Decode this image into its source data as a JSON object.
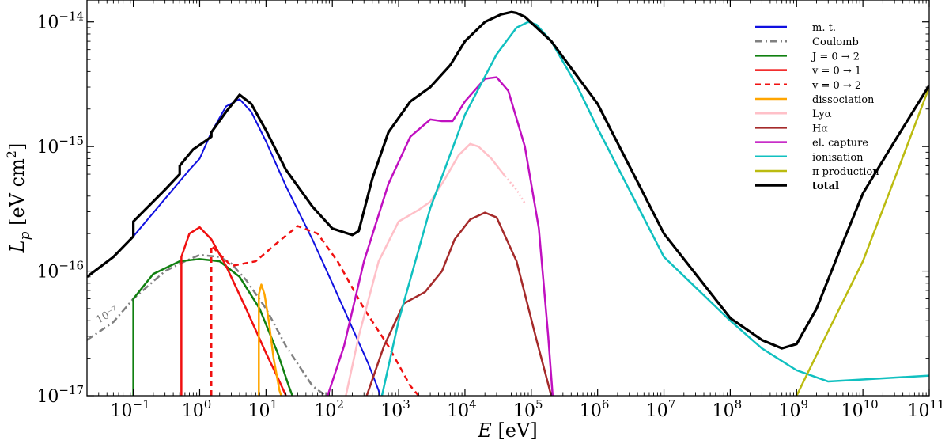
{
  "chart_data": {
    "type": "line",
    "xscale": "log",
    "yscale": "log",
    "xlim": [
      0.02,
      100000000000.0
    ],
    "ylim": [
      1e-17,
      1.5e-14
    ],
    "xlabel": {
      "symbol": "E",
      "unit": "[eV]"
    },
    "ylabel": {
      "symbol": "L",
      "sub": "p",
      "unit": "[eV cm",
      "unit_sup": "2",
      "unit_end": "]"
    },
    "grid": false,
    "legend_position": "top-right",
    "x_ticks": [
      {
        "value": 0.1,
        "base": "10",
        "exp": "−1"
      },
      {
        "value": 1,
        "base": "10",
        "exp": "0"
      },
      {
        "value": 10,
        "base": "10",
        "exp": "1"
      },
      {
        "value": 100,
        "base": "10",
        "exp": "2"
      },
      {
        "value": 1000,
        "base": "10",
        "exp": "3"
      },
      {
        "value": 10000,
        "base": "10",
        "exp": "4"
      },
      {
        "value": 100000,
        "base": "10",
        "exp": "5"
      },
      {
        "value": 1000000,
        "base": "10",
        "exp": "6"
      },
      {
        "value": 10000000,
        "base": "10",
        "exp": "7"
      },
      {
        "value": 100000000,
        "base": "10",
        "exp": "8"
      },
      {
        "value": 1000000000,
        "base": "10",
        "exp": "9"
      },
      {
        "value": 10000000000,
        "base": "10",
        "exp": "10"
      },
      {
        "value": 100000000000,
        "base": "10",
        "exp": "11"
      }
    ],
    "y_ticks": [
      {
        "value": 1e-17,
        "base": "10",
        "exp": "−17"
      },
      {
        "value": 1e-16,
        "base": "10",
        "exp": "−16"
      },
      {
        "value": 1e-15,
        "base": "10",
        "exp": "−15"
      },
      {
        "value": 1e-14,
        "base": "10",
        "exp": "−14"
      }
    ],
    "annotations": [
      {
        "text": "10⁻⁷",
        "x": 0.03,
        "y": 3.8e-17,
        "rotation": -30
      }
    ],
    "series": [
      {
        "name": "m. t.",
        "color": "#1010e0",
        "dash": "solid",
        "width": 2,
        "x": [
          0.1,
          0.3,
          0.7,
          1.0,
          1.5,
          2.5,
          4.0,
          6.0,
          10,
          20,
          50,
          100,
          200,
          350,
          500,
          520
        ],
        "y": [
          1.9e-16,
          3.8e-16,
          6.5e-16,
          8e-16,
          1.3e-15,
          2.1e-15,
          2.4e-15,
          1.9e-15,
          1.1e-15,
          4.8e-16,
          1.8e-16,
          8e-17,
          3.5e-17,
          1.8e-17,
          1.1e-17,
          1e-17
        ]
      },
      {
        "name": "Coulomb",
        "color": "#808080",
        "dash": "dashdot",
        "width": 2.5,
        "x": [
          0.02,
          0.05,
          0.1,
          0.3,
          0.6,
          1.0,
          2.0,
          3.0,
          5.0,
          10,
          20,
          50,
          80
        ],
        "y": [
          2.8e-17,
          3.9e-17,
          6e-17,
          1e-16,
          1.2e-16,
          1.35e-16,
          1.3e-16,
          1.15e-16,
          8.5e-17,
          5e-17,
          2.5e-17,
          1.2e-17,
          1e-17
        ]
      },
      {
        "name": "J = 0 → 2",
        "color": "#108010",
        "dash": "solid",
        "width": 2.5,
        "x": [
          0.1,
          0.1,
          0.2,
          0.5,
          1.0,
          2.0,
          4.0,
          8.0,
          15,
          22,
          25
        ],
        "y": [
          1e-17,
          6e-17,
          9.5e-17,
          1.2e-16,
          1.25e-16,
          1.2e-16,
          9e-17,
          5e-17,
          2.2e-17,
          1.2e-17,
          1e-17
        ]
      },
      {
        "name": "v = 0 → 1",
        "color": "#f01010",
        "dash": "solid",
        "width": 2.5,
        "x": [
          0.53,
          0.53,
          0.7,
          1.0,
          1.5,
          2.5,
          5,
          10,
          15,
          20
        ],
        "y": [
          1e-17,
          1.3e-16,
          2e-16,
          2.25e-16,
          1.8e-16,
          1.1e-16,
          5e-17,
          2.2e-17,
          1.4e-17,
          1e-17
        ]
      },
      {
        "name": "v = 0 → 2",
        "color": "#f01010",
        "dash": "dashed",
        "width": 2.5,
        "x": [
          1.5,
          1.5,
          3,
          7,
          15,
          30,
          60,
          120,
          300,
          700,
          1500,
          2000
        ],
        "y": [
          1e-17,
          1.6e-16,
          1.1e-16,
          1.2e-16,
          1.7e-16,
          2.3e-16,
          2e-16,
          1.2e-16,
          5e-17,
          2.5e-17,
          1.2e-17,
          1e-17
        ]
      },
      {
        "name": "dissociation",
        "color": "#ffa500",
        "dash": "solid",
        "width": 2.5,
        "x": [
          7.8,
          7.8,
          8.5,
          9.5,
          11,
          13,
          16,
          17
        ],
        "y": [
          1e-17,
          6.5e-17,
          7.8e-17,
          6.5e-17,
          4e-17,
          2e-17,
          1.1e-17,
          1e-17
        ]
      },
      {
        "name": "Lyα",
        "color": "#ffc0c8",
        "dash": "solid",
        "width": 2.5,
        "x": [
          160,
          250,
          500,
          1000,
          2000,
          3000,
          5000,
          8000,
          12000,
          16000,
          25000,
          40000
        ],
        "y": [
          1e-17,
          3e-17,
          1.2e-16,
          2.5e-16,
          3.1e-16,
          3.6e-16,
          5.5e-16,
          8.5e-16,
          1.05e-15,
          1e-15,
          8e-16,
          5.8e-16
        ]
      },
      {
        "name": "Lyα-dotted",
        "color": "#ffc0c8",
        "dash": "dotted",
        "width": 2.5,
        "x": [
          40000,
          60000,
          80000
        ],
        "y": [
          5.8e-16,
          4.5e-16,
          3.5e-16
        ]
      },
      {
        "name": "Hα",
        "color": "#a52a2a",
        "dash": "solid",
        "width": 2.5,
        "x": [
          330,
          600,
          1200,
          2500,
          4500,
          7000,
          12000,
          20000,
          30000,
          60000,
          120000,
          200000
        ],
        "y": [
          1e-17,
          2.5e-17,
          5.5e-17,
          6.8e-17,
          1e-16,
          1.8e-16,
          2.6e-16,
          2.95e-16,
          2.7e-16,
          1.2e-16,
          2.8e-17,
          1e-17
        ]
      },
      {
        "name": "el. capture",
        "color": "#c010c0",
        "dash": "solid",
        "width": 2.5,
        "x": [
          85,
          150,
          300,
          700,
          1500,
          3000,
          4500,
          6500,
          10000,
          20000,
          30000,
          45000,
          80000,
          130000,
          180000,
          210000
        ],
        "y": [
          1e-17,
          2.5e-17,
          1.2e-16,
          5e-16,
          1.2e-15,
          1.65e-15,
          1.6e-15,
          1.6e-15,
          2.3e-15,
          3.5e-15,
          3.6e-15,
          2.8e-15,
          1e-15,
          2.2e-16,
          3e-17,
          1e-17
        ]
      },
      {
        "name": "ionisation",
        "color": "#10c0c0",
        "dash": "solid",
        "width": 2.5,
        "x": [
          560,
          1000,
          3000,
          10000,
          30000,
          60000,
          90000,
          120000,
          200000,
          500000,
          1000000.0,
          10000000.0,
          100000000.0,
          300000000.0,
          1000000000.0,
          3000000000.0,
          10000000000.0,
          100000000000.0
        ],
        "y": [
          1e-17,
          4e-17,
          3.2e-16,
          1.8e-15,
          5.5e-15,
          9e-15,
          1e-14,
          9.5e-15,
          7e-15,
          3e-15,
          1.4e-15,
          1.3e-16,
          4e-17,
          2.4e-17,
          1.6e-17,
          1.3e-17,
          1.35e-17,
          1.45e-17
        ]
      },
      {
        "name": "π production",
        "color": "#bbbb10",
        "dash": "solid",
        "width": 2.5,
        "x": [
          1000000000.0,
          3000000000.0,
          10000000000.0,
          30000000000.0,
          100000000000.0
        ],
        "y": [
          1e-17,
          3.3e-17,
          1.2e-16,
          5.5e-16,
          3e-15
        ]
      },
      {
        "name": "total",
        "color": "#000000",
        "dash": "solid",
        "width": 3.2,
        "x": [
          0.02,
          0.05,
          0.1,
          0.1,
          0.3,
          0.5,
          0.5,
          0.8,
          1.2,
          1.5,
          1.5,
          2.5,
          4.0,
          6.0,
          10,
          20,
          50,
          100,
          200,
          250,
          400,
          700,
          1500,
          3000,
          6000,
          10000,
          20000,
          35000,
          50000,
          60000,
          80000,
          200000,
          1000000.0,
          10000000.0,
          100000000.0,
          300000000.0,
          600000000.0,
          1000000000.0,
          2000000000.0,
          5000000000.0,
          10000000000.0,
          30000000000.0,
          100000000000.0
        ],
        "y": [
          9e-17,
          1.3e-16,
          1.9e-16,
          2.5e-16,
          4.5e-16,
          6e-16,
          7e-16,
          9.5e-16,
          1.1e-15,
          1.2e-15,
          1.3e-15,
          1.9e-15,
          2.6e-15,
          2.2e-15,
          1.35e-15,
          6.5e-16,
          3.3e-16,
          2.2e-16,
          1.95e-16,
          2.1e-16,
          5.5e-16,
          1.3e-15,
          2.3e-15,
          3e-15,
          4.5e-15,
          7e-15,
          1e-14,
          1.15e-14,
          1.2e-14,
          1.18e-14,
          1.1e-14,
          7e-15,
          2.2e-15,
          2e-16,
          4.2e-17,
          2.8e-17,
          2.4e-17,
          2.6e-17,
          5e-17,
          1.7e-16,
          4.2e-16,
          1.1e-15,
          3.1e-15
        ]
      }
    ],
    "legend": [
      {
        "label": "m. t.",
        "color": "#1010e0",
        "dash": "solid",
        "bold": false
      },
      {
        "label": "Coulomb",
        "color": "#808080",
        "dash": "dashdot",
        "bold": false
      },
      {
        "label": "J = 0 → 2",
        "color": "#108010",
        "dash": "solid",
        "bold": false
      },
      {
        "label": "v = 0 → 1",
        "color": "#f01010",
        "dash": "solid",
        "bold": false
      },
      {
        "label": "v = 0 → 2",
        "color": "#f01010",
        "dash": "dashed",
        "bold": false
      },
      {
        "label": "dissociation",
        "color": "#ffa500",
        "dash": "solid",
        "bold": false
      },
      {
        "label": "Lyα",
        "color": "#ffc0c8",
        "dash": "solid",
        "bold": false
      },
      {
        "label": "Hα",
        "color": "#a52a2a",
        "dash": "solid",
        "bold": false
      },
      {
        "label": "el. capture",
        "color": "#c010c0",
        "dash": "solid",
        "bold": false
      },
      {
        "label": "ionisation",
        "color": "#10c0c0",
        "dash": "solid",
        "bold": false
      },
      {
        "label": "π production",
        "color": "#bbbb10",
        "dash": "solid",
        "bold": false
      },
      {
        "label": "total",
        "color": "#000000",
        "dash": "solid",
        "bold": true
      }
    ]
  }
}
